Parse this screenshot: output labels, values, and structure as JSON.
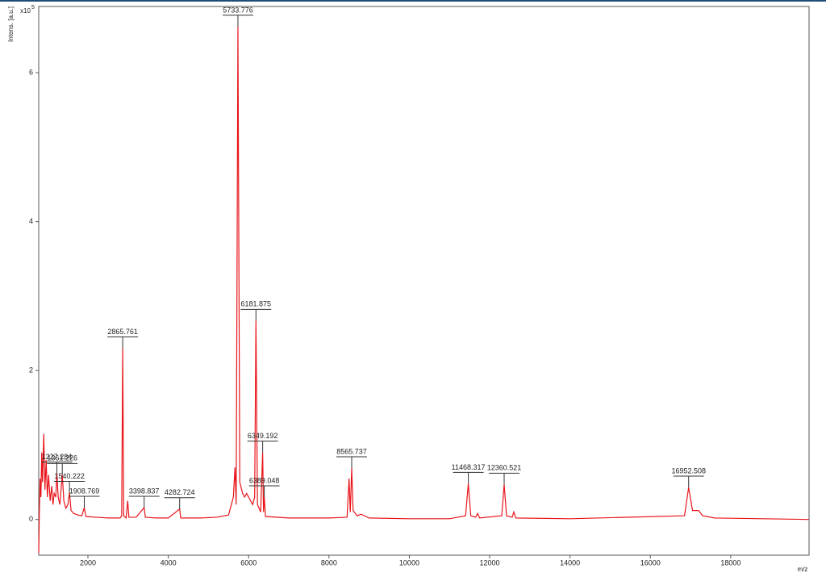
{
  "chart_data": {
    "type": "line",
    "y_label": "Intens. [a.u.]",
    "y_scale_label": "x10",
    "y_scale_exponent": "5",
    "x_label": "m/z",
    "xlim": [
      775,
      19950
    ],
    "ylim": [
      -0.48,
      6.89
    ],
    "xticks": [
      2000,
      4000,
      6000,
      8000,
      10000,
      12000,
      14000,
      16000,
      18000
    ],
    "yticks": [
      0,
      2,
      4,
      6
    ],
    "color": "#e8141a",
    "x": [
      775,
      790,
      810,
      830,
      850,
      870,
      900,
      930,
      960,
      990,
      1020,
      1060,
      1100,
      1130,
      1160,
      1200,
      1227.284,
      1260,
      1300,
      1361.226,
      1400,
      1450,
      1500,
      1540.222,
      1580,
      1650,
      1750,
      1850,
      1908.769,
      1950,
      2200,
      2500,
      2800,
      2840,
      2865.761,
      2890,
      2950,
      2990,
      3020,
      3200,
      3398.837,
      3430,
      3700,
      4000,
      4282.724,
      4310,
      4800,
      5200,
      5500,
      5620,
      5660,
      5690,
      5733.776,
      5780,
      5850,
      5900,
      5950,
      6000,
      6100,
      6150,
      6181.875,
      6220,
      6300,
      6349.192,
      6370,
      6389.048,
      6420,
      7000,
      8000,
      8450,
      8500,
      8530,
      8565.737,
      8600,
      8700,
      8800,
      9000,
      10000,
      11000,
      11400,
      11468.317,
      11530,
      11650,
      11700,
      11750,
      12300,
      12360.521,
      12420,
      12560,
      12600,
      12650,
      14000,
      16850,
      16952.508,
      17050,
      17200,
      17300,
      17600,
      19950
    ],
    "values": [
      -0.45,
      0.1,
      0.55,
      0.3,
      0.9,
      0.5,
      1.15,
      0.4,
      0.8,
      0.3,
      0.6,
      0.25,
      0.45,
      0.2,
      0.35,
      0.3,
      0.62,
      0.3,
      0.2,
      0.6,
      0.25,
      0.15,
      0.2,
      0.36,
      0.12,
      0.08,
      0.06,
      0.05,
      0.16,
      0.04,
      0.03,
      0.02,
      0.02,
      0.05,
      2.3,
      0.05,
      0.02,
      0.25,
      0.03,
      0.03,
      0.16,
      0.03,
      0.02,
      0.02,
      0.14,
      0.02,
      0.02,
      0.03,
      0.06,
      0.3,
      0.7,
      0.2,
      6.62,
      0.5,
      0.35,
      0.3,
      0.35,
      0.3,
      0.2,
      0.3,
      2.67,
      0.2,
      0.1,
      0.9,
      0.1,
      0.3,
      0.04,
      0.02,
      0.02,
      0.03,
      0.55,
      0.1,
      0.69,
      0.12,
      0.05,
      0.07,
      0.02,
      0.01,
      0.01,
      0.05,
      0.48,
      0.05,
      0.03,
      0.08,
      0.02,
      0.05,
      0.47,
      0.05,
      0.03,
      0.1,
      0.02,
      0.01,
      0.05,
      0.43,
      0.12,
      0.12,
      0.05,
      0.02,
      0
    ],
    "peaks": {
      "x": [
        1227.284,
        1361.226,
        1540.222,
        1908.769,
        2865.761,
        3398.837,
        4282.724,
        5733.776,
        6181.875,
        6349.192,
        6389.048,
        8565.737,
        11468.317,
        12360.521,
        16952.508
      ],
      "values": [
        0.62,
        0.6,
        0.36,
        0.16,
        2.3,
        0.16,
        0.14,
        6.62,
        2.67,
        0.9,
        0.3,
        0.69,
        0.48,
        0.47,
        0.43
      ]
    }
  }
}
